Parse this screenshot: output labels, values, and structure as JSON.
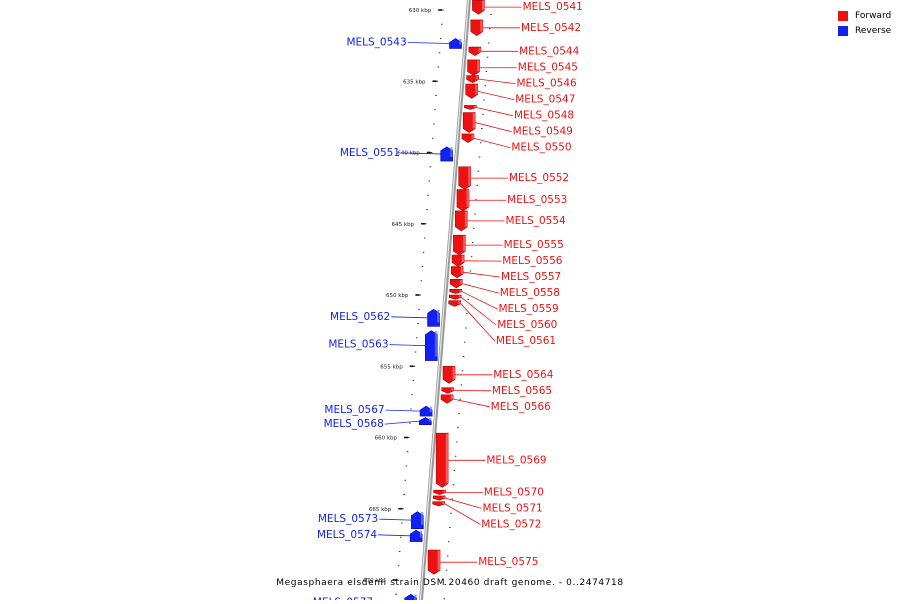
{
  "caption": "Megasphaera elsdenii strain DSM 20460 draft genome. - 0..2474718",
  "colors": {
    "forward": "#ee1111",
    "reverse": "#1122ee"
  },
  "legend": [
    {
      "label": "Forward",
      "color": "#ee1111"
    },
    {
      "label": "Reverse",
      "color": "#1122ee"
    }
  ],
  "ticks": [
    {
      "label": "630 kbp",
      "kbp": 630
    },
    {
      "label": "635 kbp",
      "kbp": 635
    },
    {
      "label": "640 kbp",
      "kbp": 640
    },
    {
      "label": "645 kbp",
      "kbp": 645
    },
    {
      "label": "650 kbp",
      "kbp": 650
    },
    {
      "label": "655 kbp",
      "kbp": 655
    },
    {
      "label": "660 kbp",
      "kbp": 660
    },
    {
      "label": "665 kbp",
      "kbp": 665
    },
    {
      "label": "670 kbp",
      "kbp": 670
    }
  ],
  "genes": [
    {
      "name": "MELS_0541",
      "strand": "forward",
      "start": 629.3,
      "end": 630.3
    },
    {
      "name": "MELS_0542",
      "strand": "forward",
      "start": 630.7,
      "end": 631.8
    },
    {
      "name": "MELS_0543",
      "strand": "reverse",
      "start": 632.0,
      "end": 632.7
    },
    {
      "name": "MELS_0544",
      "strand": "forward",
      "start": 632.6,
      "end": 633.2
    },
    {
      "name": "MELS_0545",
      "strand": "forward",
      "start": 633.5,
      "end": 634.6
    },
    {
      "name": "MELS_0546",
      "strand": "forward",
      "start": 634.6,
      "end": 635.1
    },
    {
      "name": "MELS_0547",
      "strand": "forward",
      "start": 635.2,
      "end": 636.2
    },
    {
      "name": "MELS_0548",
      "strand": "forward",
      "start": 636.7,
      "end": 636.9
    },
    {
      "name": "MELS_0549",
      "strand": "forward",
      "start": 637.2,
      "end": 638.6
    },
    {
      "name": "MELS_0550",
      "strand": "forward",
      "start": 638.7,
      "end": 639.3
    },
    {
      "name": "MELS_0551",
      "strand": "reverse",
      "start": 639.6,
      "end": 640.6
    },
    {
      "name": "MELS_0552",
      "strand": "forward",
      "start": 641.0,
      "end": 642.6
    },
    {
      "name": "MELS_0553",
      "strand": "forward",
      "start": 642.6,
      "end": 644.1
    },
    {
      "name": "MELS_0554",
      "strand": "forward",
      "start": 644.1,
      "end": 645.5
    },
    {
      "name": "MELS_0555",
      "strand": "forward",
      "start": 645.8,
      "end": 647.2
    },
    {
      "name": "MELS_0556",
      "strand": "forward",
      "start": 647.2,
      "end": 648.0
    },
    {
      "name": "MELS_0557",
      "strand": "forward",
      "start": 648.0,
      "end": 648.8
    },
    {
      "name": "MELS_0558",
      "strand": "forward",
      "start": 648.9,
      "end": 649.5
    },
    {
      "name": "MELS_0559",
      "strand": "forward",
      "start": 649.6,
      "end": 649.9
    },
    {
      "name": "MELS_0560",
      "strand": "forward",
      "start": 650.0,
      "end": 650.3
    },
    {
      "name": "MELS_0561",
      "strand": "forward",
      "start": 650.4,
      "end": 650.8
    },
    {
      "name": "MELS_0562",
      "strand": "reverse",
      "start": 651.0,
      "end": 652.2
    },
    {
      "name": "MELS_0563",
      "strand": "reverse",
      "start": 652.5,
      "end": 654.6
    },
    {
      "name": "MELS_0564",
      "strand": "forward",
      "start": 655.0,
      "end": 656.2
    },
    {
      "name": "MELS_0565",
      "strand": "forward",
      "start": 656.5,
      "end": 656.9
    },
    {
      "name": "MELS_0566",
      "strand": "forward",
      "start": 657.0,
      "end": 657.6
    },
    {
      "name": "MELS_0567",
      "strand": "reverse",
      "start": 657.8,
      "end": 658.5
    },
    {
      "name": "MELS_0568",
      "strand": "reverse",
      "start": 658.6,
      "end": 659.1
    },
    {
      "name": "MELS_0569",
      "strand": "forward",
      "start": 659.7,
      "end": 663.5
    },
    {
      "name": "MELS_0570",
      "strand": "forward",
      "start": 663.7,
      "end": 664.0
    },
    {
      "name": "MELS_0571",
      "strand": "forward",
      "start": 664.1,
      "end": 664.4
    },
    {
      "name": "MELS_0572",
      "strand": "forward",
      "start": 664.5,
      "end": 664.8
    },
    {
      "name": "MELS_0573",
      "strand": "reverse",
      "start": 665.2,
      "end": 666.4
    },
    {
      "name": "MELS_0574",
      "strand": "reverse",
      "start": 666.5,
      "end": 667.3
    },
    {
      "name": "MELS_0575",
      "strand": "forward",
      "start": 667.9,
      "end": 669.6
    },
    {
      "name": "MELS_0577",
      "strand": "reverse",
      "start": 671.0,
      "end": 672.3
    }
  ]
}
